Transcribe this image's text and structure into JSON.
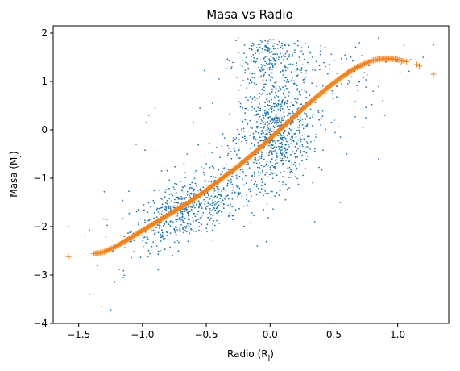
{
  "chart_data": {
    "type": "scatter",
    "title": "Masa vs Radio",
    "xlabel": "Radio (R",
    "xlabel_sub": "J",
    "xlabel_close": ")",
    "ylabel": "Masa (M",
    "ylabel_sub": "J",
    "ylabel_close": ")",
    "xlim": [
      -1.7,
      1.4
    ],
    "ylim": [
      -4.0,
      2.15
    ],
    "xticks": [
      -1.5,
      -1.0,
      -0.5,
      0.0,
      0.5,
      1.0
    ],
    "xtick_labels": [
      "−1.5",
      "−1.0",
      "−0.5",
      "0.0",
      "0.5",
      "1.0"
    ],
    "yticks": [
      -4,
      -3,
      -2,
      -1,
      0,
      1,
      2
    ],
    "ytick_labels": [
      "−4",
      "−3",
      "−2",
      "−1",
      "0",
      "1",
      "2"
    ],
    "grid": false,
    "series": [
      {
        "marker": "dot",
        "color": "#1f77b4",
        "clusters": [
          {
            "cx": -0.65,
            "cy": -1.65,
            "sx": 0.22,
            "sy": 0.3,
            "n": 520,
            "trend": 1.0
          },
          {
            "cx": 0.05,
            "cy": -0.05,
            "sx": 0.14,
            "sy": 0.55,
            "n": 650,
            "trend": 0.6
          },
          {
            "cx": 0.0,
            "cy": 1.45,
            "sx": 0.13,
            "sy": 0.3,
            "n": 220,
            "trend": 0.0
          },
          {
            "cx": -0.25,
            "cy": -0.9,
            "sx": 0.35,
            "sy": 0.5,
            "n": 260,
            "trend": 1.5
          },
          {
            "cx": 0.4,
            "cy": 1.2,
            "sx": 0.35,
            "sy": 0.4,
            "n": 120,
            "trend": 0.2
          }
        ],
        "outliers": [
          [
            -1.58,
            -2.0
          ],
          [
            -1.3,
            -1.28
          ],
          [
            -1.28,
            -1.85
          ],
          [
            -1.35,
            -2.8
          ],
          [
            -1.25,
            -3.72
          ],
          [
            -1.32,
            -3.65
          ],
          [
            -1.22,
            -3.15
          ],
          [
            -1.15,
            -3.05
          ],
          [
            -1.05,
            -0.3
          ],
          [
            -0.98,
            -0.42
          ],
          [
            -0.97,
            0.15
          ],
          [
            -0.95,
            0.3
          ],
          [
            -0.9,
            0.45
          ],
          [
            -0.85,
            -0.85
          ],
          [
            -0.6,
            0.15
          ],
          [
            -0.55,
            0.45
          ],
          [
            -0.45,
            0.55
          ],
          [
            -0.4,
            1.05
          ],
          [
            -0.3,
            1.3
          ],
          [
            -0.25,
            1.9
          ],
          [
            -0.1,
            0.65
          ],
          [
            -0.65,
            -0.5
          ],
          [
            -0.5,
            -0.7
          ],
          [
            0.35,
            -1.9
          ],
          [
            0.55,
            -1.5
          ],
          [
            0.6,
            -0.5
          ],
          [
            0.55,
            -0.15
          ],
          [
            0.75,
            0.25
          ],
          [
            0.85,
            -0.6
          ],
          [
            0.9,
            0.3
          ],
          [
            1.05,
            1.75
          ],
          [
            1.1,
            1.45
          ],
          [
            1.2,
            1.5
          ],
          [
            1.28,
            1.75
          ],
          [
            0.7,
            1.8
          ],
          [
            0.85,
            1.9
          ],
          [
            -0.2,
            1.75
          ],
          [
            -1.45,
            -2.2
          ],
          [
            -0.1,
            -2.4
          ],
          [
            0.15,
            -1.2
          ]
        ]
      },
      {
        "marker": "plus",
        "color": "#ff7f0e",
        "points": [
          [
            -1.58,
            -2.62
          ],
          [
            -1.38,
            -2.56
          ],
          [
            -1.35,
            -2.55
          ],
          [
            -1.3,
            -2.52
          ],
          [
            -1.25,
            -2.46
          ],
          [
            -1.2,
            -2.4
          ],
          [
            -1.15,
            -2.32
          ],
          [
            -1.1,
            -2.24
          ],
          [
            -1.05,
            -2.16
          ],
          [
            -1.0,
            -2.08
          ],
          [
            -0.95,
            -2.0
          ],
          [
            -0.9,
            -1.92
          ],
          [
            -0.85,
            -1.84
          ],
          [
            -0.8,
            -1.76
          ],
          [
            -0.75,
            -1.68
          ],
          [
            -0.7,
            -1.6
          ],
          [
            -0.65,
            -1.52
          ],
          [
            -0.6,
            -1.43
          ],
          [
            -0.55,
            -1.34
          ],
          [
            -0.5,
            -1.25
          ],
          [
            -0.45,
            -1.15
          ],
          [
            -0.4,
            -1.05
          ],
          [
            -0.35,
            -0.95
          ],
          [
            -0.3,
            -0.85
          ],
          [
            -0.25,
            -0.75
          ],
          [
            -0.2,
            -0.64
          ],
          [
            -0.15,
            -0.53
          ],
          [
            -0.1,
            -0.42
          ],
          [
            -0.05,
            -0.3
          ],
          [
            0.0,
            -0.18
          ],
          [
            0.05,
            -0.06
          ],
          [
            0.1,
            0.06
          ],
          [
            0.15,
            0.18
          ],
          [
            0.2,
            0.3
          ],
          [
            0.25,
            0.42
          ],
          [
            0.3,
            0.54
          ],
          [
            0.35,
            0.65
          ],
          [
            0.4,
            0.76
          ],
          [
            0.45,
            0.87
          ],
          [
            0.5,
            0.97
          ],
          [
            0.55,
            1.07
          ],
          [
            0.6,
            1.16
          ],
          [
            0.65,
            1.25
          ],
          [
            0.7,
            1.32
          ],
          [
            0.75,
            1.38
          ],
          [
            0.8,
            1.43
          ],
          [
            0.85,
            1.46
          ],
          [
            0.9,
            1.47
          ],
          [
            0.95,
            1.47
          ],
          [
            1.0,
            1.45
          ],
          [
            1.05,
            1.42
          ],
          [
            1.07,
            1.41
          ],
          [
            1.15,
            1.35
          ],
          [
            1.17,
            1.32
          ],
          [
            1.28,
            1.15
          ]
        ]
      }
    ]
  }
}
